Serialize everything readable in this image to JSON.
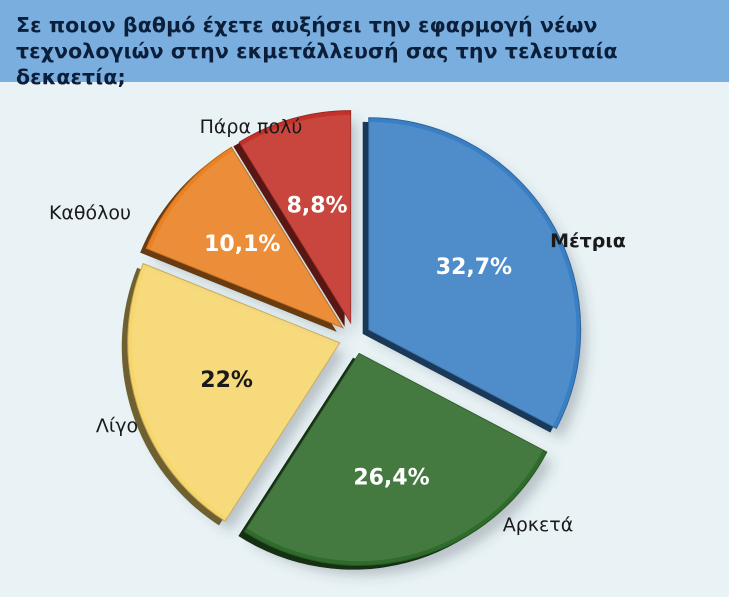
{
  "chart_data": {
    "type": "pie",
    "title": "Σε ποιον βαθμό έχετε αυξήσει την εφαρμογή νέων τεχνολογιών στην εκμετάλλευσή σας την τελευταία δεκαετία;",
    "slices": [
      {
        "label": "Μέτρια",
        "value": 32.7,
        "value_label": "32,7%",
        "color": "#3a7fc4",
        "label_bold": true
      },
      {
        "label": "Αρκετά",
        "value": 26.4,
        "value_label": "26,4%",
        "color": "#2f6b2a",
        "label_bold": false
      },
      {
        "label": "Λίγο",
        "value": 22,
        "value_label": "22%",
        "color": "#f7d66e",
        "label_bold": false
      },
      {
        "label": "Καθόλου",
        "value": 10.1,
        "value_label": "10,1%",
        "color": "#ea8223",
        "label_bold": false
      },
      {
        "label": "Πάρα πολύ",
        "value": 8.8,
        "value_label": "8,8%",
        "color": "#c3322a",
        "label_bold": false
      }
    ]
  },
  "colors": {
    "title_bar": "#79aede",
    "background": "#e9f3f5",
    "title_text": "#0b1e3a"
  }
}
